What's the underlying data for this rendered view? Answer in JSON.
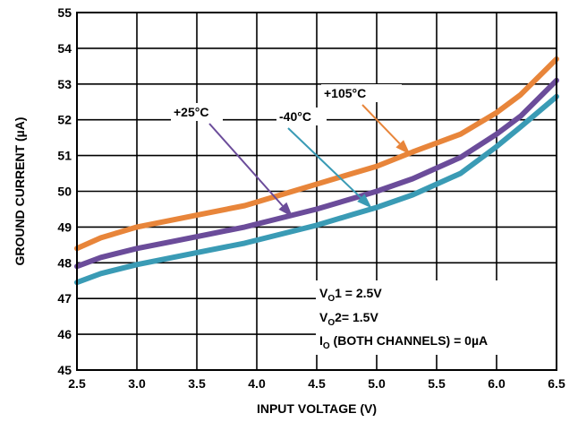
{
  "chart_data": {
    "type": "line",
    "title": "",
    "xlabel": "INPUT VOLTAGE (V)",
    "ylabel": "GROUND CURRENT (µA)",
    "xlim": [
      2.5,
      6.5
    ],
    "ylim": [
      45,
      55
    ],
    "x_ticks": [
      "2.5",
      "3.0",
      "3.5",
      "4.0",
      "4.5",
      "5.0",
      "5.5",
      "6.0",
      "6.5"
    ],
    "y_ticks": [
      "45",
      "46",
      "47",
      "48",
      "49",
      "50",
      "51",
      "52",
      "53",
      "54",
      "55"
    ],
    "grid": true,
    "series": [
      {
        "name": "+105°C",
        "color": "#E8853A",
        "x": [
          2.5,
          2.7,
          3.0,
          3.3,
          3.6,
          3.9,
          4.2,
          4.5,
          4.8,
          5.0,
          5.3,
          5.7,
          6.0,
          6.2,
          6.5
        ],
        "y": [
          48.4,
          48.7,
          49.0,
          49.2,
          49.4,
          49.6,
          49.9,
          50.2,
          50.5,
          50.7,
          51.1,
          51.6,
          52.2,
          52.7,
          53.7
        ]
      },
      {
        "name": "+25°C",
        "color": "#6B4C9A",
        "x": [
          2.5,
          2.7,
          3.0,
          3.3,
          3.6,
          3.9,
          4.2,
          4.5,
          4.8,
          5.0,
          5.3,
          5.7,
          6.0,
          6.2,
          6.5
        ],
        "y": [
          47.9,
          48.15,
          48.4,
          48.6,
          48.8,
          49.0,
          49.25,
          49.5,
          49.8,
          50.0,
          50.35,
          50.95,
          51.6,
          52.1,
          53.1
        ]
      },
      {
        "name": "-40°C",
        "color": "#3A9BB5",
        "x": [
          2.5,
          2.7,
          3.0,
          3.3,
          3.6,
          3.9,
          4.2,
          4.5,
          4.8,
          5.0,
          5.3,
          5.7,
          6.0,
          6.2,
          6.5
        ],
        "y": [
          47.45,
          47.7,
          47.95,
          48.15,
          48.35,
          48.55,
          48.8,
          49.05,
          49.35,
          49.55,
          49.9,
          50.5,
          51.25,
          51.8,
          52.65
        ]
      }
    ],
    "annotations": {
      "label_105": "+105°C",
      "label_25": "+25°C",
      "label_m40": "-40°C"
    },
    "notes": {
      "line1_main": "V",
      "line1_sub": "O",
      "line1_rest": "1 = 2.5V",
      "line2_main": "V",
      "line2_sub": "O",
      "line2_rest": "2= 1.5V",
      "line3_main": "I",
      "line3_sub": "O",
      "line3_rest": " (BOTH CHANNELS) = 0µA"
    }
  }
}
